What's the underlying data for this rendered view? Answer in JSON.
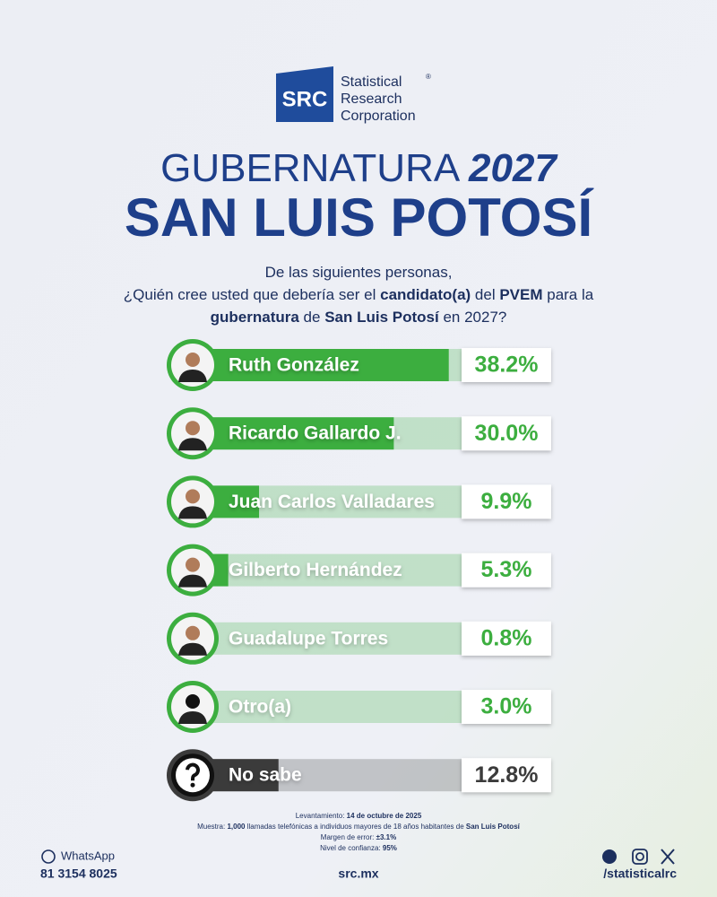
{
  "logo": {
    "abbr": "SRC",
    "lines": [
      "Statistical",
      "Research",
      "Corporation"
    ],
    "mark": "®"
  },
  "chart_data": {
    "type": "bar",
    "orientation": "horizontal",
    "title": "GUBERNATURA",
    "title_year": "2027",
    "subtitle": "SAN LUIS POTOSÍ",
    "question": [
      [
        {
          "text": "De las siguientes personas,",
          "bold": false
        }
      ],
      [
        {
          "text": "¿Quién cree usted que debería ser el ",
          "bold": false
        },
        {
          "text": "candidato(a)",
          "bold": true
        },
        {
          "text": " del ",
          "bold": false
        },
        {
          "text": "PVEM",
          "bold": true
        },
        {
          "text": " para la",
          "bold": false
        }
      ],
      [
        {
          "text": "gubernatura",
          "bold": true
        },
        {
          "text": " de ",
          "bold": false
        },
        {
          "text": "San Luis Potosí",
          "bold": true
        },
        {
          "text": " en 2027?",
          "bold": false
        }
      ]
    ],
    "categories": [
      "Ruth González",
      "Ricardo Gallardo J.",
      "Juan Carlos Valladares",
      "Gilberto Hernández",
      "Guadalupe Torres",
      "Otro(a)",
      "No sabe"
    ],
    "values": [
      38.2,
      30.0,
      9.9,
      5.3,
      0.8,
      3.0,
      12.8
    ],
    "value_labels": [
      "38.2%",
      "30.0%",
      "9.9%",
      "5.3%",
      "0.8%",
      "3.0%",
      "12.8%"
    ],
    "colors": [
      "#3cae3f",
      "#3cae3f",
      "#3cae3f",
      "#3cae3f",
      "#3cae3f",
      "#3cae3f",
      "#3b3b3b"
    ]
  },
  "notes": [
    [
      {
        "text": "Levantamiento: ",
        "bold": false
      },
      {
        "text": "14 de octubre de 2025",
        "bold": true
      }
    ],
    [
      {
        "text": "Muestra: ",
        "bold": false
      },
      {
        "text": "1,000",
        "bold": true
      },
      {
        "text": " llamadas telefónicas a individuos mayores de 18 años habitantes de ",
        "bold": false
      },
      {
        "text": "San Luis Potosí",
        "bold": true
      }
    ],
    [
      {
        "text": "Margen de error: ",
        "bold": false
      },
      {
        "text": "±3.1%",
        "bold": true
      }
    ],
    [
      {
        "text": "Nivel de confianza: ",
        "bold": false
      },
      {
        "text": "95%",
        "bold": true
      }
    ]
  ],
  "footer": {
    "whatsapp": "WhatsApp",
    "phone": "81 3154 8025",
    "site": "src.mx",
    "handle": "/statisticalrc"
  }
}
